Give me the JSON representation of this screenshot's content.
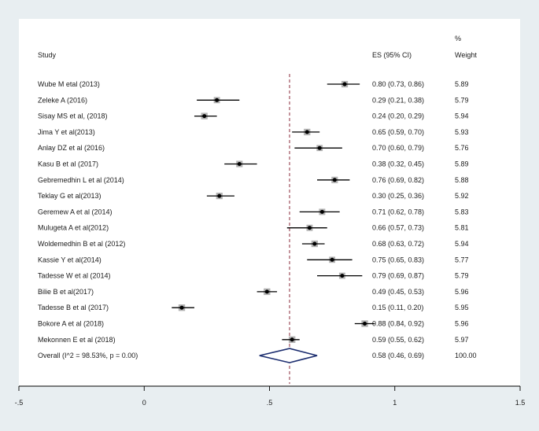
{
  "chart_data": {
    "type": "forest",
    "headers": {
      "study": "Study",
      "es": "ES (95% CI)",
      "weight_pct": "%",
      "weight": "Weight"
    },
    "studies": [
      {
        "label": "Wube M etal (2013)",
        "es": 0.8,
        "lo": 0.73,
        "hi": 0.86,
        "ci_text": "0.80 (0.73, 0.86)",
        "weight": "5.89"
      },
      {
        "label": "Zeleke A (2016)",
        "es": 0.29,
        "lo": 0.21,
        "hi": 0.38,
        "ci_text": "0.29 (0.21, 0.38)",
        "weight": "5.79"
      },
      {
        "label": "Sisay MS et al, (2018)",
        "es": 0.24,
        "lo": 0.2,
        "hi": 0.29,
        "ci_text": "0.24 (0.20, 0.29)",
        "weight": "5.94"
      },
      {
        "label": "Jima Y et al(2013)",
        "es": 0.65,
        "lo": 0.59,
        "hi": 0.7,
        "ci_text": "0.65 (0.59, 0.70)",
        "weight": "5.93"
      },
      {
        "label": "Anlay DZ et al (2016)",
        "es": 0.7,
        "lo": 0.6,
        "hi": 0.79,
        "ci_text": "0.70 (0.60, 0.79)",
        "weight": "5.76"
      },
      {
        "label": "Kasu B et al (2017)",
        "es": 0.38,
        "lo": 0.32,
        "hi": 0.45,
        "ci_text": "0.38 (0.32, 0.45)",
        "weight": "5.89"
      },
      {
        "label": "Gebremedhin L et al (2014)",
        "es": 0.76,
        "lo": 0.69,
        "hi": 0.82,
        "ci_text": "0.76 (0.69, 0.82)",
        "weight": "5.88"
      },
      {
        "label": "Teklay G et al(2013)",
        "es": 0.3,
        "lo": 0.25,
        "hi": 0.36,
        "ci_text": "0.30 (0.25, 0.36)",
        "weight": "5.92"
      },
      {
        "label": "Geremew A et al (2014)",
        "es": 0.71,
        "lo": 0.62,
        "hi": 0.78,
        "ci_text": "0.71 (0.62, 0.78)",
        "weight": "5.83"
      },
      {
        "label": "Mulugeta A et al(2012)",
        "es": 0.66,
        "lo": 0.57,
        "hi": 0.73,
        "ci_text": "0.66 (0.57, 0.73)",
        "weight": "5.81"
      },
      {
        "label": "Woldemedhin B et al (2012)",
        "es": 0.68,
        "lo": 0.63,
        "hi": 0.72,
        "ci_text": "0.68 (0.63, 0.72)",
        "weight": "5.94"
      },
      {
        "label": "Kassie Y et al(2014)",
        "es": 0.75,
        "lo": 0.65,
        "hi": 0.83,
        "ci_text": "0.75 (0.65, 0.83)",
        "weight": "5.77"
      },
      {
        "label": "Tadesse W et al (2014)",
        "es": 0.79,
        "lo": 0.69,
        "hi": 0.87,
        "ci_text": "0.79 (0.69, 0.87)",
        "weight": "5.79"
      },
      {
        "label": "Bilie B et al(2017)",
        "es": 0.49,
        "lo": 0.45,
        "hi": 0.53,
        "ci_text": "0.49 (0.45, 0.53)",
        "weight": "5.96"
      },
      {
        "label": "Tadesse B et al (2017)",
        "es": 0.15,
        "lo": 0.11,
        "hi": 0.2,
        "ci_text": "0.15 (0.11, 0.20)",
        "weight": "5.95"
      },
      {
        "label": "Bokore A et al (2018)",
        "es": 0.88,
        "lo": 0.84,
        "hi": 0.92,
        "ci_text": "0.88 (0.84, 0.92)",
        "weight": "5.96"
      },
      {
        "label": "Mekonnen E et al (2018)",
        "es": 0.59,
        "lo": 0.55,
        "hi": 0.62,
        "ci_text": "0.59 (0.55, 0.62)",
        "weight": "5.97"
      }
    ],
    "overall": {
      "label": "Overall  (I^2 = 98.53%, p = 0.00)",
      "es": 0.58,
      "lo": 0.46,
      "hi": 0.69,
      "ci_text": "0.58 (0.46, 0.69)",
      "weight": "100.00"
    },
    "x_ticks": [
      {
        "value": -0.5,
        "label": "-.5"
      },
      {
        "value": 0,
        "label": "0"
      },
      {
        "value": 0.5,
        "label": ".5"
      },
      {
        "value": 1,
        "label": "1"
      },
      {
        "value": 1.5,
        "label": "1.5"
      }
    ],
    "xlim": [
      -0.5,
      1.5
    ],
    "colors": {
      "marker": "#000000",
      "weight_box": "#b3b3b3",
      "pooled_line": "#8b2a3a",
      "diamond": "#1a2c6e",
      "panel": "#ffffff",
      "background": "#e8eef1"
    }
  }
}
